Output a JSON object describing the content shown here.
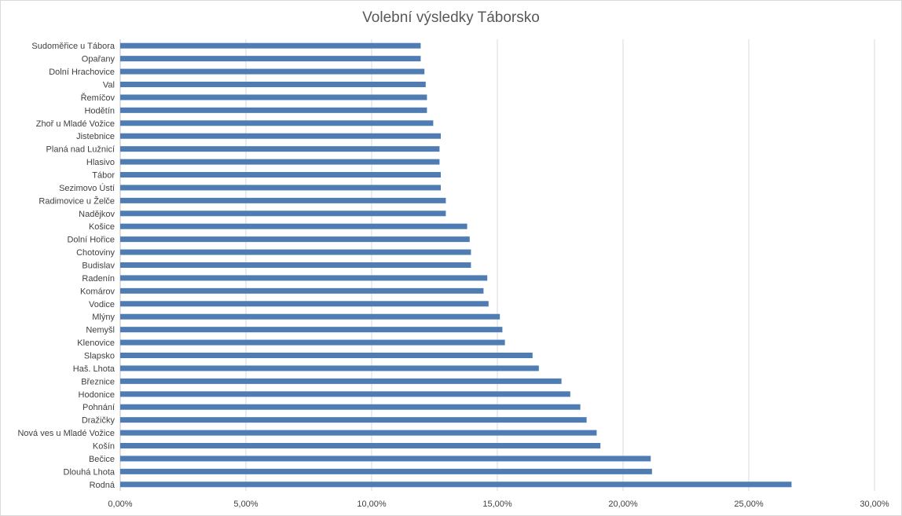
{
  "chart_data": {
    "type": "bar",
    "orientation": "horizontal",
    "title": "Volební výsledky Táborsko",
    "xlim": [
      0,
      30
    ],
    "ticks": [
      "0,00%",
      "5,00%",
      "10,00%",
      "15,00%",
      "20,00%",
      "25,00%",
      "30,00%"
    ],
    "grid": true,
    "legend": "none",
    "bar_color": "#4f7db3",
    "categories": [
      "Sudoměřice u Tábora",
      "Opařany",
      "Dolní Hrachovice",
      "Val",
      "Řemíčov",
      "Hodětín",
      "Zhoř u Mladé Vožice",
      "Jistebnice",
      "Planá nad Lužnicí",
      "Hlasivo",
      "Tábor",
      "Sezimovo Ústí",
      "Radimovice u Želče",
      "Nadějkov",
      "Košice",
      "Dolní Hořice",
      "Chotoviny",
      "Budislav",
      "Radenín",
      "Komárov",
      "Vodice",
      "Mlýny",
      "Nemyšl",
      "Klenovice",
      "Slapsko",
      "Haš. Lhota",
      "Březnice",
      "Hodonice",
      "Pohnání",
      "Dražičky",
      "Nová ves u Mladé Vožice",
      "Košín",
      "Bečice",
      "Dlouhá Lhota",
      "Rodná"
    ],
    "values": [
      11.95,
      11.95,
      12.1,
      12.15,
      12.2,
      12.2,
      12.45,
      12.75,
      12.7,
      12.7,
      12.75,
      12.75,
      12.95,
      12.95,
      13.8,
      13.9,
      13.95,
      13.95,
      14.6,
      14.45,
      14.65,
      15.1,
      15.2,
      15.3,
      16.4,
      16.65,
      17.55,
      17.9,
      18.3,
      18.55,
      18.95,
      19.1,
      21.1,
      21.15,
      26.7
    ]
  }
}
